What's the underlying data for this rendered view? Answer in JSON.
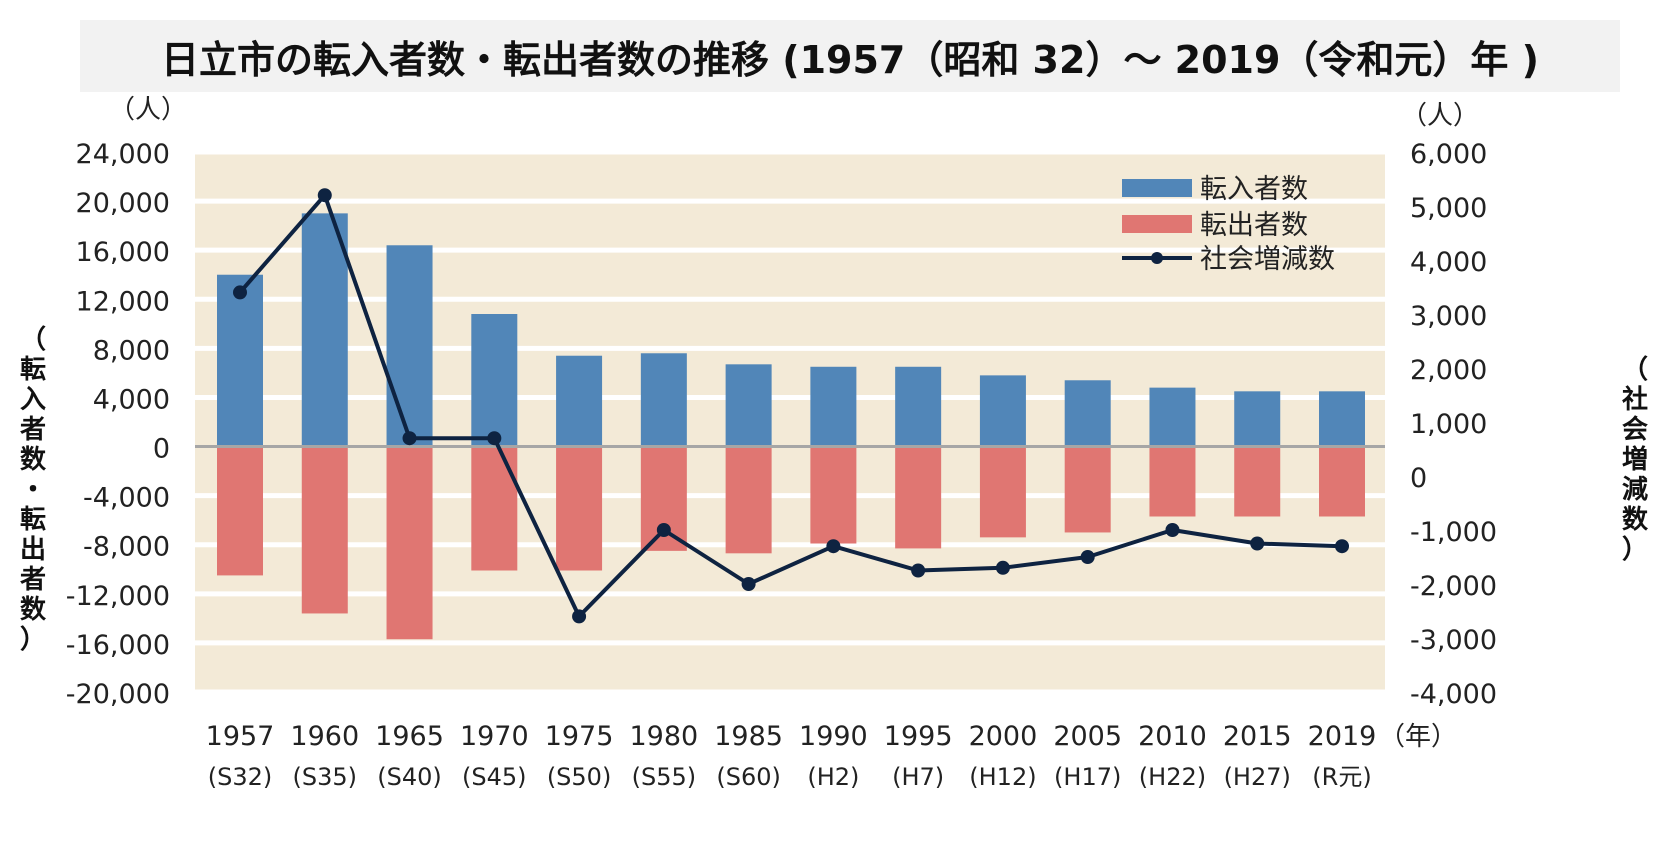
{
  "chart_data": {
    "type": "bar",
    "title": "日立市の転入者数・転出者数の推移 (1957（昭和 32）～ 2019（令和元）年 )",
    "categories": [
      "1957",
      "1960",
      "1965",
      "1970",
      "1975",
      "1980",
      "1985",
      "1990",
      "1995",
      "2000",
      "2005",
      "2010",
      "2015",
      "2019"
    ],
    "category_sublabels": [
      "(S32)",
      "(S35)",
      "(S40)",
      "(S45)",
      "(S50)",
      "(S55)",
      "(S60)",
      "(H2)",
      "(H7)",
      "(H12)",
      "(H17)",
      "(H22)",
      "(H27)",
      "(R元)"
    ],
    "x_unit": "（年）",
    "left_axis": {
      "unit": "（人）",
      "label": "（転入者数・転出者数）",
      "ylim": [
        -20000,
        24000
      ],
      "ticks": [
        24000,
        20000,
        16000,
        12000,
        8000,
        4000,
        0,
        -4000,
        -8000,
        -12000,
        -16000,
        -20000
      ],
      "tick_labels": [
        "24,000",
        "20,000",
        "16,000",
        "12,000",
        "8,000",
        "4,000",
        "0",
        "-4,000",
        "-8,000",
        "-12,000",
        "-16,000",
        "-20,000"
      ]
    },
    "right_axis": {
      "unit": "（人）",
      "label": "（社会増減数）",
      "ylim": [
        -4000,
        6000
      ],
      "ticks": [
        6000,
        5000,
        4000,
        3000,
        2000,
        1000,
        0,
        -1000,
        -2000,
        -3000,
        -4000
      ],
      "tick_labels": [
        "6,000",
        "5,000",
        "4,000",
        "3,000",
        "2,000",
        "1,000",
        "0",
        "-1,000",
        "-2,000",
        "-3,000",
        "-4,000"
      ]
    },
    "series": [
      {
        "name": "転入者数",
        "kind": "bar",
        "axis": "left",
        "color": "#5186b8",
        "values": [
          14000,
          19000,
          16400,
          10800,
          7400,
          7600,
          6700,
          6500,
          6500,
          5800,
          5400,
          4800,
          4500,
          4500
        ]
      },
      {
        "name": "転出者数",
        "kind": "bar",
        "axis": "left",
        "color": "#e07672",
        "values": [
          -10500,
          -13600,
          -15700,
          -10100,
          -10100,
          -8500,
          -8700,
          -7900,
          -8300,
          -7400,
          -7000,
          -5700,
          -5700,
          -5700
        ]
      },
      {
        "name": "社会増減数",
        "kind": "line",
        "axis": "right",
        "color": "#0e2341",
        "values": [
          3400,
          5200,
          700,
          700,
          -2600,
          -1000,
          -2000,
          -1300,
          -1750,
          -1700,
          -1500,
          -1000,
          -1250,
          -1300
        ]
      }
    ],
    "legend_position": "top-right",
    "plot_background": "#f3ead7",
    "grid": true
  }
}
